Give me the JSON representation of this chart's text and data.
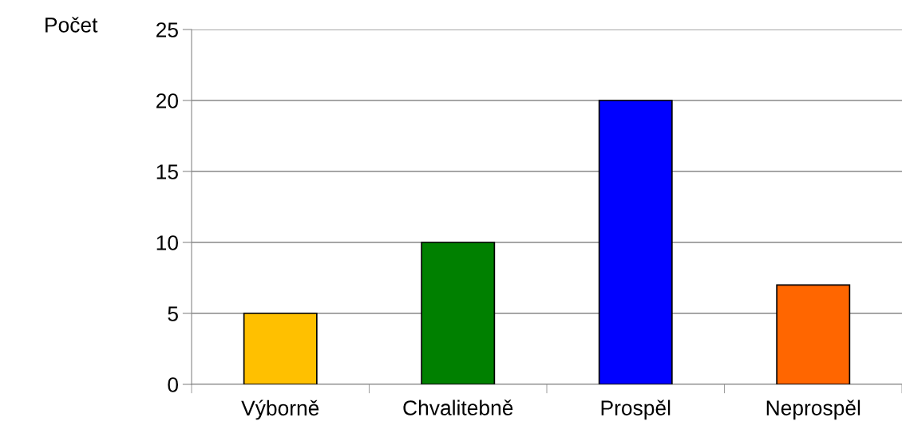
{
  "chart_data": {
    "type": "bar",
    "ylabel": "Počet",
    "categories": [
      "Výborně",
      "Chvalitebně",
      "Prospěl",
      "Neprospěl"
    ],
    "values": [
      5,
      10,
      20,
      7
    ],
    "colors": [
      "#ffc000",
      "#008000",
      "#0000ff",
      "#ff6600"
    ],
    "ylim": [
      0,
      25
    ],
    "yticks": [
      0,
      5,
      10,
      15,
      20,
      25
    ],
    "grid": "y",
    "legend": false
  }
}
